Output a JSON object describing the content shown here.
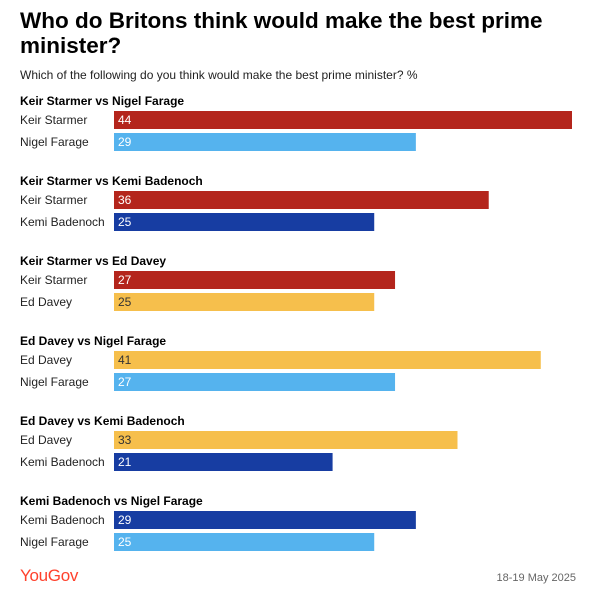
{
  "title": "Who do Britons think would make the best prime minister?",
  "subtitle": "Which of the following do you think would make the best prime minister? %",
  "logo": "YouGov",
  "date": "18-19 May 2025",
  "colors": {
    "Keir Starmer": "#b4251c",
    "Nigel Farage": "#55b3ee",
    "Kemi Badenoch": "#173da2",
    "Ed Davey": "#f6bf4c"
  },
  "chart_data": {
    "type": "bar",
    "orientation": "horizontal",
    "xlim": [
      0,
      44
    ],
    "grid": false,
    "groups": [
      {
        "title": "Keir Starmer vs Nigel Farage",
        "bars": [
          {
            "label": "Keir Starmer",
            "value": 44
          },
          {
            "label": "Nigel Farage",
            "value": 29
          }
        ]
      },
      {
        "title": "Keir Starmer vs Kemi Badenoch",
        "bars": [
          {
            "label": "Keir Starmer",
            "value": 36
          },
          {
            "label": "Kemi Badenoch",
            "value": 25
          }
        ]
      },
      {
        "title": "Keir Starmer vs Ed Davey",
        "bars": [
          {
            "label": "Keir Starmer",
            "value": 27
          },
          {
            "label": "Ed Davey",
            "value": 25
          }
        ]
      },
      {
        "title": "Ed Davey vs Nigel Farage",
        "bars": [
          {
            "label": "Ed Davey",
            "value": 41
          },
          {
            "label": "Nigel Farage",
            "value": 27
          }
        ]
      },
      {
        "title": "Ed Davey vs Kemi Badenoch",
        "bars": [
          {
            "label": "Ed Davey",
            "value": 33
          },
          {
            "label": "Kemi Badenoch",
            "value": 21
          }
        ]
      },
      {
        "title": "Kemi Badenoch vs Nigel Farage",
        "bars": [
          {
            "label": "Kemi Badenoch",
            "value": 29
          },
          {
            "label": "Nigel Farage",
            "value": 25
          }
        ]
      }
    ]
  }
}
